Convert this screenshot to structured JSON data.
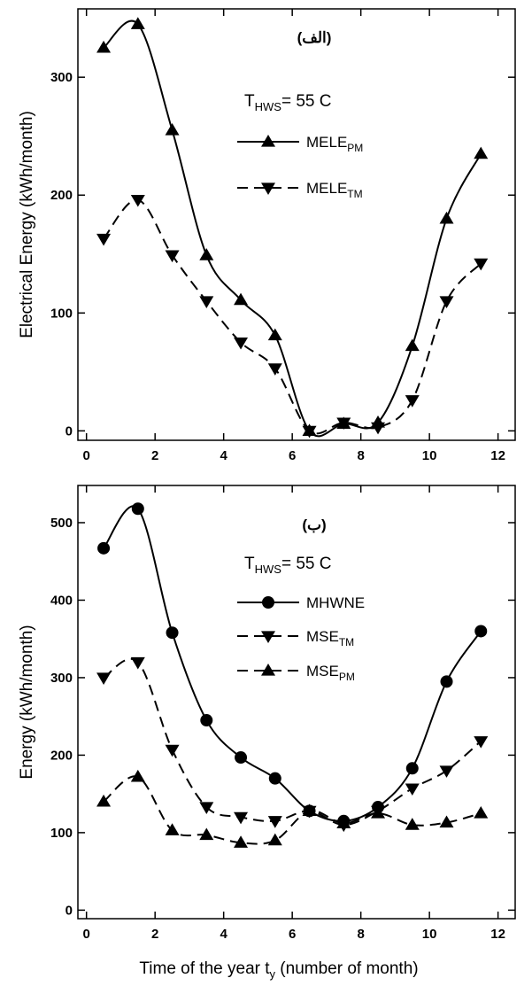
{
  "chart_data": [
    {
      "type": "line",
      "annotation": "(الف)",
      "legend_title": {
        "text": "T",
        "subscript": "HWS",
        "rest": "= 55 C"
      },
      "y_label": "Electrical Energy (kWh/month)",
      "x": [
        0.5,
        1.5,
        2.5,
        3.5,
        4.5,
        5.5,
        6.5,
        7.5,
        8.5,
        9.5,
        10.5,
        11.5
      ],
      "series": [
        {
          "name": "MELE",
          "subscript": "PM",
          "marker": "triangle-up",
          "dash": false,
          "color": "#000000",
          "values": [
            325,
            345,
            255,
            149,
            111,
            81,
            0,
            6,
            7,
            72,
            180,
            235
          ]
        },
        {
          "name": "MELE",
          "subscript": "TM",
          "marker": "triangle-down",
          "dash": true,
          "color": "#000000",
          "values": [
            163,
            196,
            149,
            110,
            75,
            53,
            0,
            7,
            3,
            26,
            110,
            142
          ]
        }
      ],
      "xlim": [
        -0.25,
        12.5
      ],
      "xticks": [
        0,
        2,
        4,
        6,
        8,
        10,
        12
      ],
      "ylim": [
        -8,
        358
      ],
      "yticks": [
        0,
        100,
        200,
        300
      ]
    },
    {
      "type": "line",
      "annotation": "(ب)",
      "legend_title": {
        "text": "T",
        "subscript": "HWS",
        "rest": "= 55 C"
      },
      "y_label": "Energy (kWh/month)",
      "x_label": {
        "text": "Time of the year t",
        "subscript": "y",
        "rest": " (number of month)"
      },
      "x": [
        0.5,
        1.5,
        2.5,
        3.5,
        4.5,
        5.5,
        6.5,
        7.5,
        8.5,
        9.5,
        10.5,
        11.5
      ],
      "series": [
        {
          "name": "MHWNE",
          "subscript": null,
          "marker": "circle",
          "dash": false,
          "color": "#000000",
          "values": [
            467,
            518,
            358,
            245,
            197,
            170,
            128,
            115,
            133,
            183,
            295,
            360
          ]
        },
        {
          "name": "MSE",
          "subscript": "TM",
          "marker": "triangle-down",
          "dash": true,
          "color": "#000000",
          "values": [
            300,
            320,
            207,
            133,
            120,
            115,
            128,
            110,
            128,
            157,
            180,
            218
          ]
        },
        {
          "name": "MSE",
          "subscript": "PM",
          "marker": "triangle-up",
          "dash": true,
          "color": "#000000",
          "values": [
            140,
            172,
            103,
            97,
            87,
            90,
            128,
            112,
            125,
            110,
            113,
            125
          ]
        }
      ],
      "xlim": [
        -0.25,
        12.5
      ],
      "xticks": [
        0,
        2,
        4,
        6,
        8,
        10,
        12
      ],
      "ylim": [
        -11,
        548
      ],
      "yticks": [
        0,
        100,
        200,
        300,
        400,
        500
      ]
    }
  ]
}
